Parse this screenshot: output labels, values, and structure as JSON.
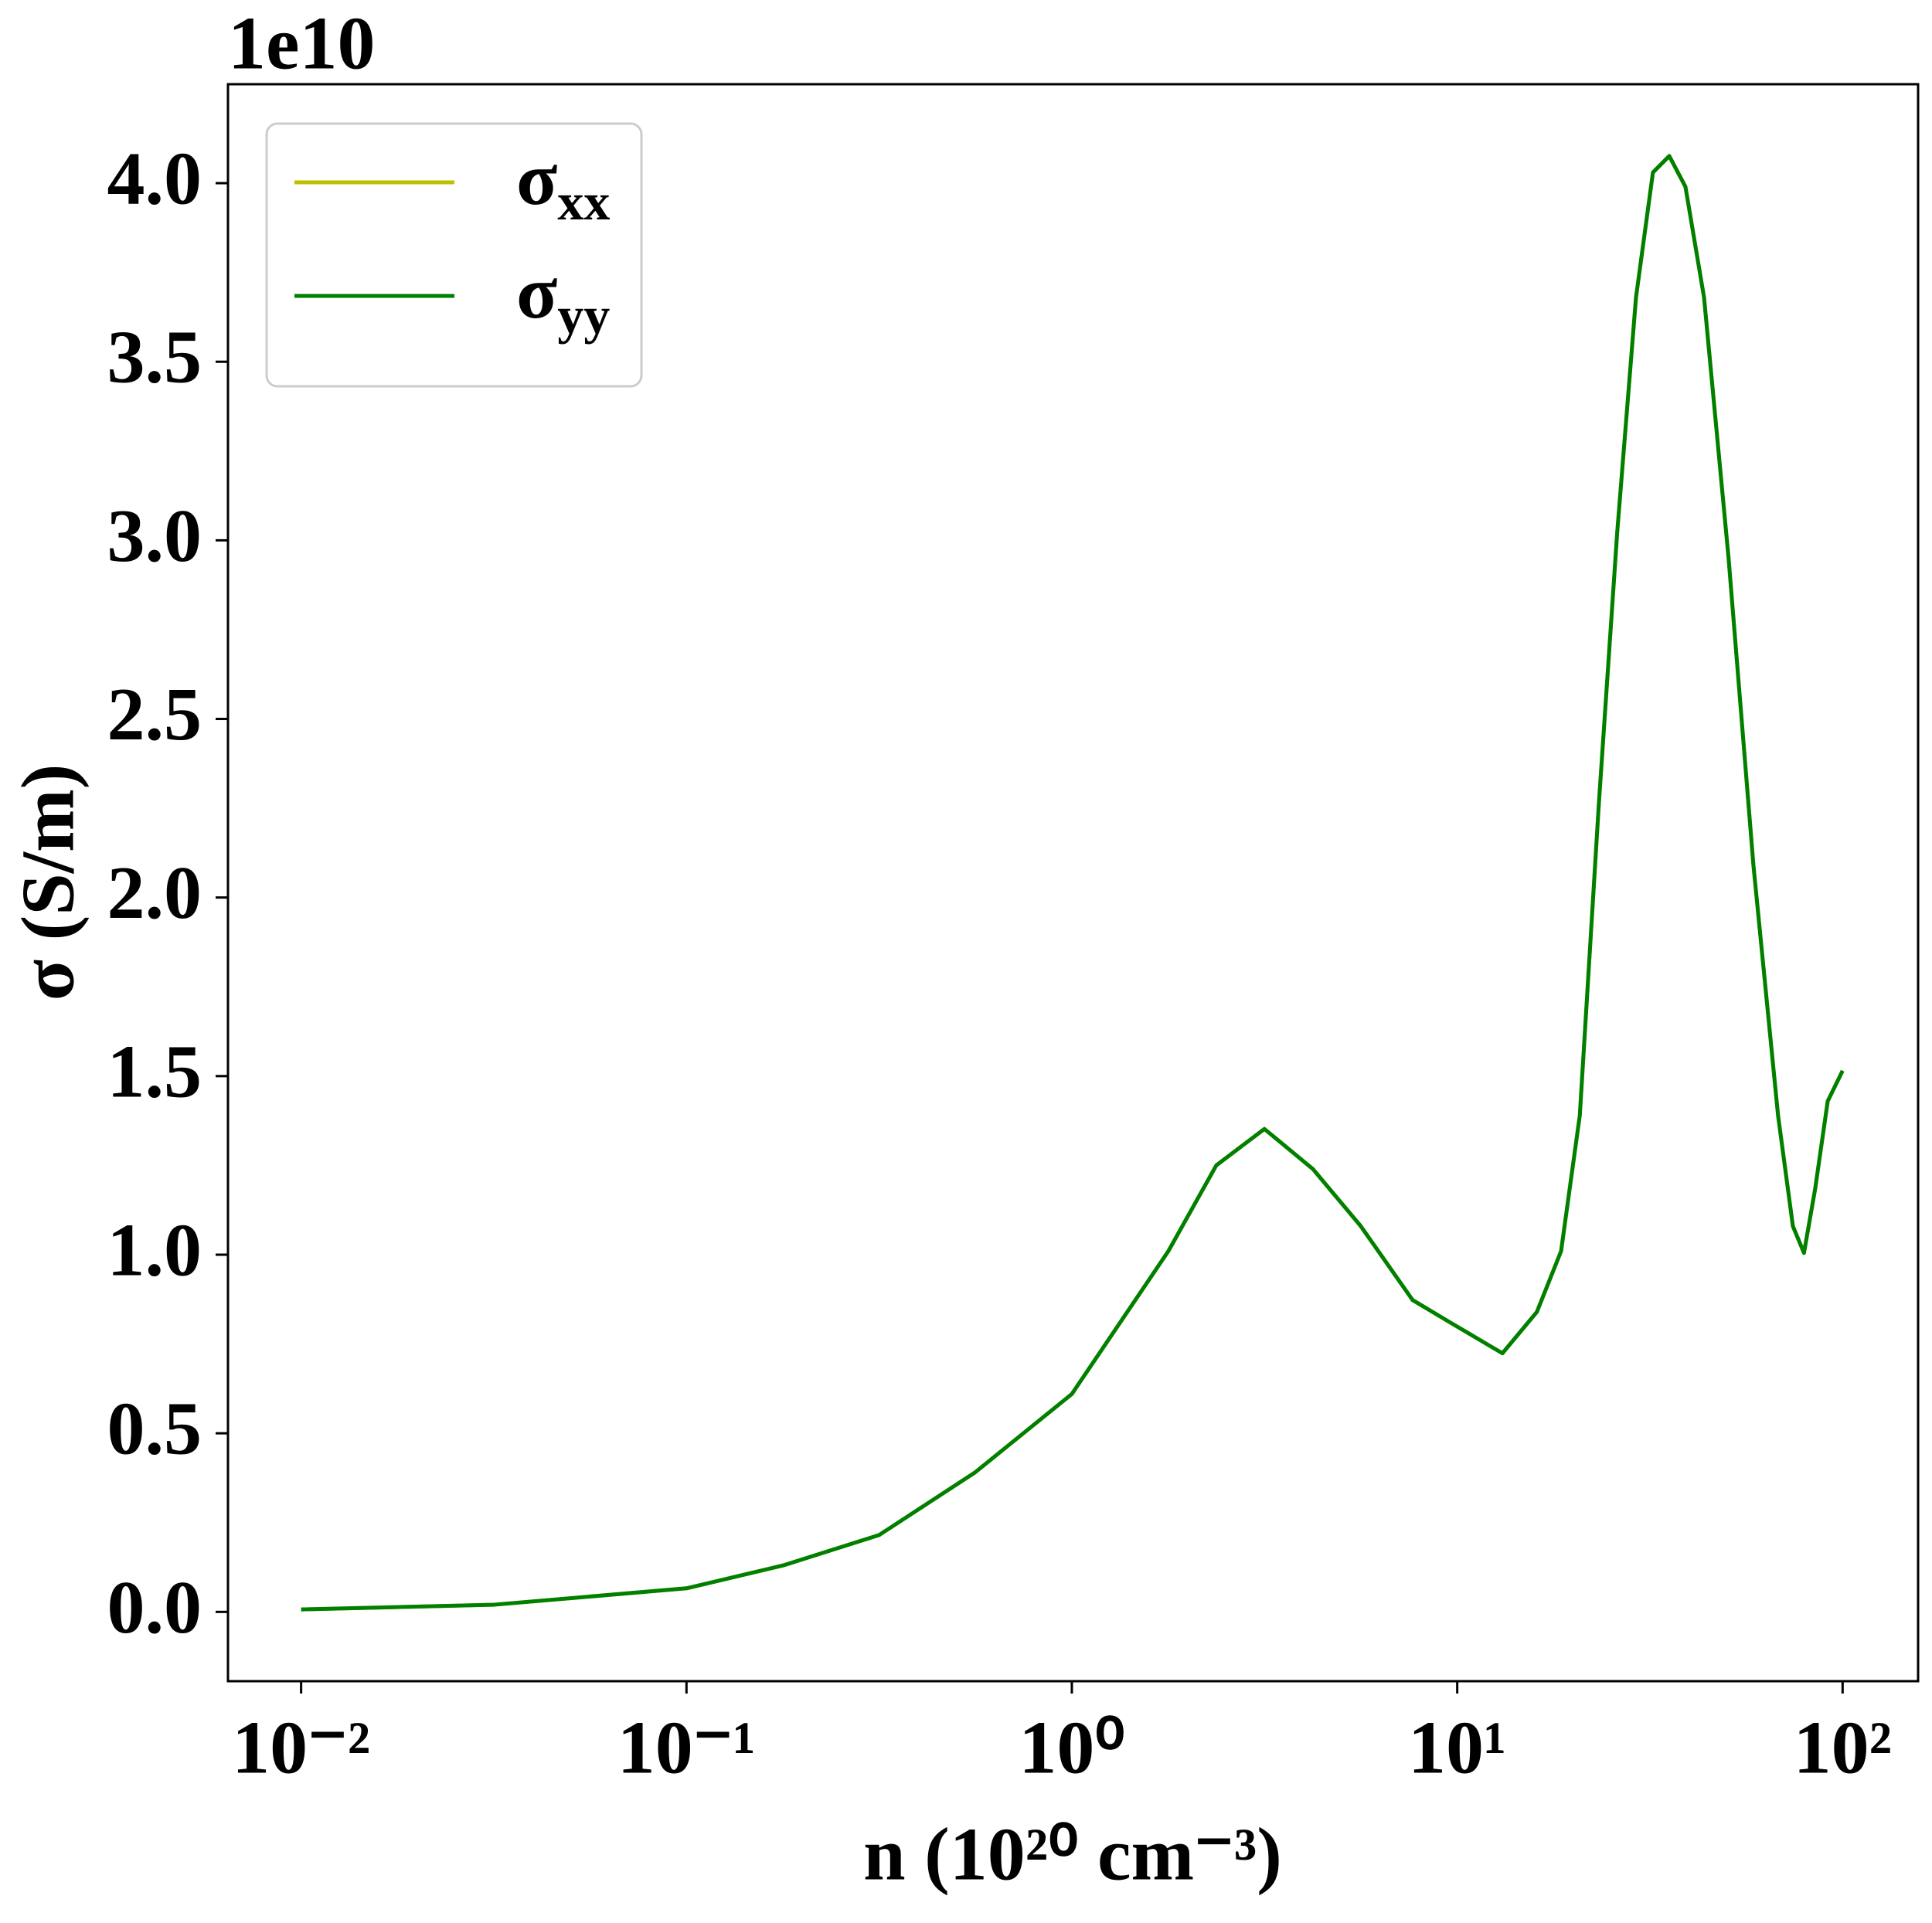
{
  "chart_data": {
    "type": "line",
    "offset_label": "1e10",
    "xlabel": "n (10²⁰ cm⁻³)",
    "ylabel": "σ (S/m)",
    "xscale": "log",
    "xlim": [
      0.00646,
      157
    ],
    "ylim": [
      -0.194,
      4.277
    ],
    "xticks": [
      {
        "value": 0.01,
        "label": "10⁻²"
      },
      {
        "value": 0.1,
        "label": "10⁻¹"
      },
      {
        "value": 1,
        "label": "10⁰"
      },
      {
        "value": 10,
        "label": "10¹"
      },
      {
        "value": 100,
        "label": "10²"
      }
    ],
    "yticks": [
      {
        "value": 0,
        "label": "0.0"
      },
      0.5,
      {
        "value": 1,
        "label": "1.0"
      },
      1.5,
      {
        "value": 2,
        "label": "2.0"
      },
      2.5,
      {
        "value": 3,
        "label": "3.0"
      },
      3.5,
      {
        "value": 4,
        "label": "4.0"
      }
    ],
    "legend": "upper left",
    "x": [
      0.01,
      0.0316,
      0.1,
      0.178,
      0.316,
      0.56,
      1,
      1.78,
      2.37,
      3.16,
      4.22,
      5.62,
      7.66,
      9.6,
      13.1,
      16.1,
      18.6,
      20.8,
      23.3,
      26.0,
      29.1,
      32.2,
      35.5,
      39.1,
      43.7,
      50.6,
      58.7,
      68.0,
      74.3,
      79.4,
      84.9,
      91.5,
      100
    ],
    "series": [
      {
        "name": "σxx",
        "color": "#bfbf00",
        "values": [
          0.007,
          0.02,
          0.066,
          0.13,
          0.215,
          0.39,
          0.61,
          1.01,
          1.25,
          1.352,
          1.24,
          1.08,
          0.873,
          0.81,
          0.724,
          0.84,
          1.01,
          1.39,
          2.26,
          3.02,
          3.68,
          4.03,
          4.076,
          3.99,
          3.68,
          2.95,
          2.09,
          1.39,
          1.08,
          1.005,
          1.185,
          1.43,
          1.515
        ]
      },
      {
        "name": "σyy",
        "color": "#008000",
        "values": [
          0.007,
          0.02,
          0.066,
          0.13,
          0.215,
          0.39,
          0.61,
          1.01,
          1.25,
          1.352,
          1.24,
          1.08,
          0.873,
          0.81,
          0.724,
          0.84,
          1.01,
          1.39,
          2.26,
          3.02,
          3.68,
          4.03,
          4.076,
          3.99,
          3.68,
          2.95,
          2.09,
          1.39,
          1.08,
          1.005,
          1.185,
          1.43,
          1.515
        ]
      }
    ]
  }
}
